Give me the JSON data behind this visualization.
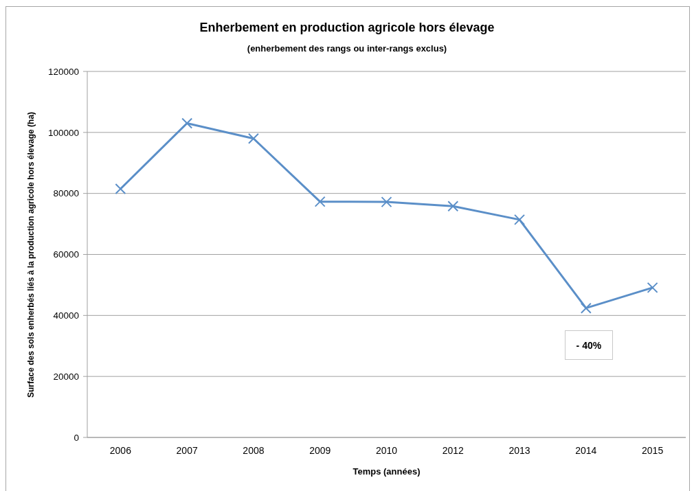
{
  "chart_data": {
    "type": "line",
    "title": "Enherbement en production agricole hors élevage",
    "subtitle": "(enherbement des rangs ou inter-rangs exclus)",
    "xlabel": "Temps (années)",
    "ylabel": "Surface des sols enherbés liés à la production agricole hors élevage (ha)",
    "categories": [
      "2006",
      "2007",
      "2008",
      "2009",
      "2010",
      "2012",
      "2013",
      "2014",
      "2015"
    ],
    "series": [
      {
        "color": "#5b8fc8",
        "values": [
          81500,
          103000,
          98000,
          77300,
          77200,
          75800,
          71400,
          42400,
          49100
        ]
      }
    ],
    "ylim": [
      0,
      120000
    ],
    "yticks": [
      0,
      20000,
      40000,
      60000,
      80000,
      100000,
      120000
    ],
    "grid": "y",
    "marker": "cross",
    "line_style": "solid",
    "annotations": [
      "- 40%"
    ]
  }
}
